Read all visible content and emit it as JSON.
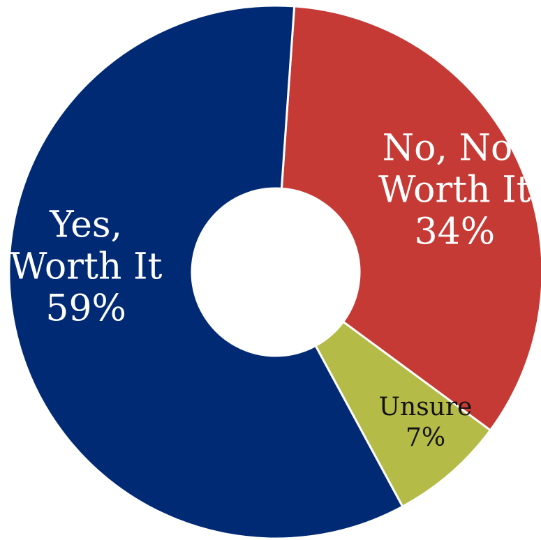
{
  "chart_data": {
    "type": "pie",
    "title": "",
    "hole": "donut",
    "series": [
      {
        "name": "",
        "values": [
          34,
          7,
          59
        ],
        "categories": [
          "No, Not Worth It",
          "Unsure",
          "Yes, Worth It"
        ]
      }
    ],
    "slices": [
      {
        "key": "no",
        "label_lines": [
          "No, Not",
          "Worth It",
          "34%"
        ],
        "value": 34,
        "color": "#C53A35",
        "text_color": "#FFFFFF"
      },
      {
        "key": "unsure",
        "label_lines": [
          "Unsure",
          "7%"
        ],
        "value": 7,
        "color": "#B5BB47",
        "text_color": "#111111"
      },
      {
        "key": "yes",
        "label_lines": [
          "Yes,",
          "Worth It",
          "59%"
        ],
        "value": 59,
        "color": "#012A74",
        "text_color": "#FFFFFF"
      }
    ],
    "legend": "none",
    "start_angle_deg": 4
  }
}
